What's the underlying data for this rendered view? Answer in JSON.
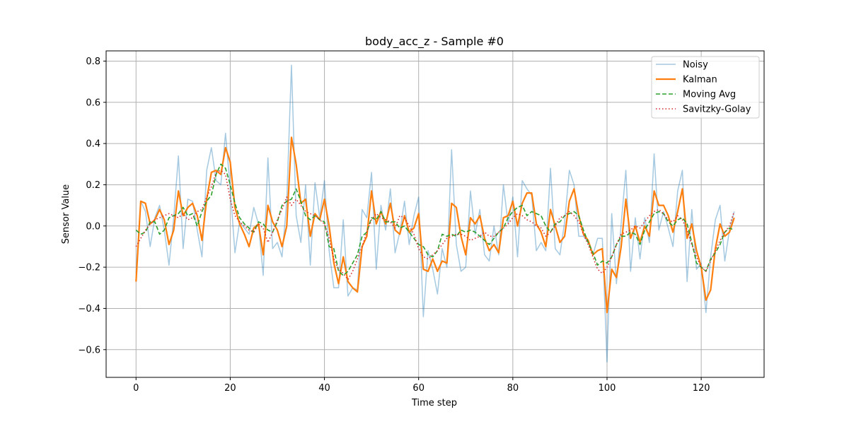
{
  "chart_data": {
    "type": "line",
    "title": "body_acc_z - Sample #0",
    "xlabel": "Time step",
    "ylabel": "Sensor Value",
    "xlim": [
      -6.35,
      133.35
    ],
    "ylim": [
      -0.7345,
      0.8495
    ],
    "xticks": [
      0,
      20,
      40,
      60,
      80,
      100,
      120
    ],
    "yticks": [
      -0.6,
      -0.4,
      -0.2,
      0.0,
      0.2,
      0.4,
      0.6,
      0.8
    ],
    "xtick_labels": [
      "0",
      "20",
      "40",
      "60",
      "80",
      "100",
      "120"
    ],
    "ytick_labels": [
      "−0.6",
      "−0.4",
      "−0.2",
      "0.0",
      "0.2",
      "0.4",
      "0.6",
      "0.8"
    ],
    "grid": true,
    "legend_position": "top-right",
    "series": [
      {
        "name": "Noisy",
        "color": "#1f77b4",
        "style": "solid",
        "values": [
          -0.23,
          0.12,
          0.07,
          -0.1,
          0.04,
          0.1,
          -0.02,
          -0.19,
          0.04,
          0.34,
          -0.11,
          0.13,
          0.12,
          -0.02,
          -0.15,
          0.27,
          0.38,
          0.22,
          0.2,
          0.45,
          0.18,
          -0.13,
          0.02,
          -0.01,
          -0.04,
          0.09,
          0.01,
          -0.24,
          0.33,
          -0.11,
          -0.08,
          -0.15,
          0.12,
          0.78,
          0.05,
          -0.08,
          0.2,
          -0.19,
          0.21,
          0.04,
          0.22,
          -0.12,
          -0.3,
          -0.3,
          0.03,
          -0.34,
          -0.3,
          -0.31,
          0.08,
          0.04,
          0.26,
          -0.21,
          0.1,
          -0.02,
          0.18,
          -0.13,
          -0.03,
          0.12,
          -0.09,
          0.05,
          0.14,
          -0.44,
          -0.12,
          -0.21,
          -0.33,
          -0.11,
          -0.2,
          0.37,
          -0.09,
          -0.22,
          -0.2,
          0.17,
          -0.04,
          0.08,
          -0.14,
          -0.17,
          0.0,
          -0.14,
          0.2,
          0.01,
          0.14,
          -0.15,
          0.22,
          0.18,
          0.15,
          -0.12,
          -0.08,
          -0.12,
          0.28,
          -0.11,
          -0.14,
          0.02,
          0.27,
          0.2,
          -0.05,
          -0.05,
          -0.08,
          -0.14,
          -0.06,
          -0.06,
          -0.66,
          0.06,
          -0.28,
          0.01,
          0.27,
          -0.22,
          0.04,
          -0.16,
          0.04,
          -0.08,
          0.35,
          -0.02,
          0.07,
          -0.01,
          -0.1,
          0.17,
          0.27,
          -0.27,
          0.08,
          -0.21,
          -0.18,
          -0.42,
          -0.15,
          0.03,
          0.1,
          -0.17,
          -0.02,
          0.07
        ]
      },
      {
        "name": "Kalman",
        "color": "#ff7f0e",
        "style": "solid",
        "values": [
          -0.27,
          0.12,
          0.11,
          0.01,
          0.03,
          0.08,
          0.03,
          -0.09,
          -0.02,
          0.17,
          0.05,
          0.09,
          0.11,
          0.05,
          -0.07,
          0.13,
          0.26,
          0.27,
          0.25,
          0.38,
          0.31,
          0.09,
          0.01,
          -0.04,
          -0.1,
          -0.01,
          0.01,
          -0.14,
          0.1,
          0.02,
          -0.02,
          -0.1,
          0.0,
          0.43,
          0.3,
          0.11,
          0.13,
          -0.05,
          0.06,
          0.03,
          0.13,
          0.0,
          -0.18,
          -0.28,
          -0.15,
          -0.27,
          -0.3,
          -0.32,
          -0.1,
          -0.05,
          0.17,
          0.01,
          0.07,
          0.01,
          0.11,
          -0.02,
          -0.04,
          0.05,
          -0.03,
          -0.01,
          0.06,
          -0.21,
          -0.22,
          -0.16,
          -0.22,
          -0.17,
          -0.18,
          0.11,
          0.09,
          -0.05,
          -0.14,
          0.04,
          0.01,
          0.05,
          -0.06,
          -0.12,
          -0.09,
          -0.13,
          0.04,
          0.05,
          0.12,
          0.0,
          0.11,
          0.16,
          0.16,
          0.01,
          -0.03,
          -0.1,
          0.08,
          0.0,
          -0.08,
          -0.05,
          0.12,
          0.18,
          0.05,
          -0.04,
          -0.07,
          -0.14,
          -0.12,
          -0.11,
          -0.42,
          -0.21,
          -0.25,
          -0.1,
          0.13,
          -0.06,
          0.0,
          -0.08,
          0.0,
          -0.05,
          0.17,
          0.1,
          0.1,
          0.05,
          -0.03,
          0.07,
          0.18,
          -0.06,
          0.01,
          -0.12,
          -0.2,
          -0.36,
          -0.31,
          -0.11,
          0.01,
          -0.05,
          -0.03,
          0.04
        ]
      },
      {
        "name": "Moving Avg",
        "color": "#2ca02c",
        "style": "dashed",
        "values": [
          -0.02,
          -0.04,
          -0.03,
          0.02,
          0.02,
          -0.04,
          -0.02,
          0.04,
          0.05,
          0.06,
          0.09,
          0.05,
          0.06,
          0.0,
          0.07,
          0.12,
          0.15,
          0.25,
          0.3,
          0.28,
          0.2,
          0.11,
          0.04,
          0.01,
          -0.01,
          -0.03,
          0.02,
          0.01,
          -0.02,
          -0.03,
          0.02,
          0.1,
          0.12,
          0.13,
          0.18,
          0.12,
          0.05,
          0.03,
          0.05,
          0.03,
          0.02,
          -0.1,
          -0.11,
          -0.22,
          -0.24,
          -0.22,
          -0.18,
          -0.14,
          -0.05,
          -0.03,
          0.04,
          0.03,
          0.07,
          0.02,
          0.02,
          0.02,
          -0.01,
          0.0,
          -0.03,
          -0.06,
          -0.09,
          -0.1,
          -0.14,
          -0.15,
          -0.12,
          -0.04,
          -0.05,
          -0.04,
          -0.05,
          -0.02,
          -0.03,
          -0.02,
          -0.03,
          -0.05,
          -0.07,
          -0.09,
          -0.06,
          -0.03,
          -0.01,
          0.04,
          0.07,
          0.09,
          0.1,
          0.05,
          0.07,
          0.06,
          0.05,
          0.0,
          -0.03,
          0.01,
          0.02,
          0.05,
          0.06,
          0.07,
          0.05,
          -0.02,
          -0.08,
          -0.13,
          -0.19,
          -0.17,
          -0.18,
          -0.15,
          -0.09,
          -0.05,
          -0.05,
          -0.03,
          -0.04,
          -0.09,
          -0.02,
          0.02,
          0.06,
          0.07,
          0.06,
          0.02,
          0.0,
          0.03,
          0.04,
          0.01,
          -0.08,
          -0.18,
          -0.2,
          -0.22,
          -0.16,
          -0.13,
          -0.09,
          -0.03,
          -0.01,
          -0.02
        ]
      },
      {
        "name": "Savitzky-Golay",
        "color": "#d62728",
        "style": "dotted",
        "values": [
          -0.1,
          -0.06,
          -0.02,
          0.01,
          0.03,
          0.04,
          0.05,
          0.06,
          0.05,
          0.04,
          0.06,
          0.03,
          0.04,
          0.07,
          0.08,
          0.14,
          0.19,
          0.26,
          0.27,
          0.25,
          0.13,
          0.05,
          0.02,
          0.0,
          -0.02,
          -0.03,
          0.01,
          -0.01,
          -0.08,
          -0.03,
          0.03,
          0.08,
          0.14,
          0.1,
          0.13,
          0.1,
          0.07,
          0.06,
          0.05,
          0.03,
          0.01,
          -0.06,
          -0.16,
          -0.21,
          -0.23,
          -0.26,
          -0.22,
          -0.16,
          -0.1,
          -0.03,
          0.03,
          0.06,
          0.04,
          0.03,
          0.02,
          -0.01,
          0.05,
          0.04,
          0.0,
          -0.04,
          -0.11,
          -0.15,
          -0.16,
          -0.14,
          -0.12,
          -0.09,
          -0.06,
          -0.05,
          -0.04,
          -0.04,
          -0.05,
          -0.07,
          -0.06,
          -0.05,
          -0.03,
          -0.05,
          -0.05,
          -0.03,
          -0.01,
          0.01,
          0.04,
          0.06,
          0.05,
          0.03,
          0.02,
          0.0,
          -0.01,
          -0.05,
          -0.03,
          0.0,
          0.04,
          0.05,
          0.07,
          0.05,
          0.02,
          -0.04,
          -0.09,
          -0.15,
          -0.21,
          -0.23,
          -0.2,
          -0.15,
          -0.09,
          -0.04,
          -0.03,
          -0.02,
          0.0,
          -0.01,
          0.02,
          0.05,
          0.07,
          0.08,
          0.06,
          0.03,
          0.02,
          0.05,
          0.03,
          -0.02,
          -0.09,
          -0.15,
          -0.2,
          -0.22,
          -0.17,
          -0.12,
          -0.07,
          -0.03,
          0.0,
          0.07
        ]
      }
    ]
  }
}
